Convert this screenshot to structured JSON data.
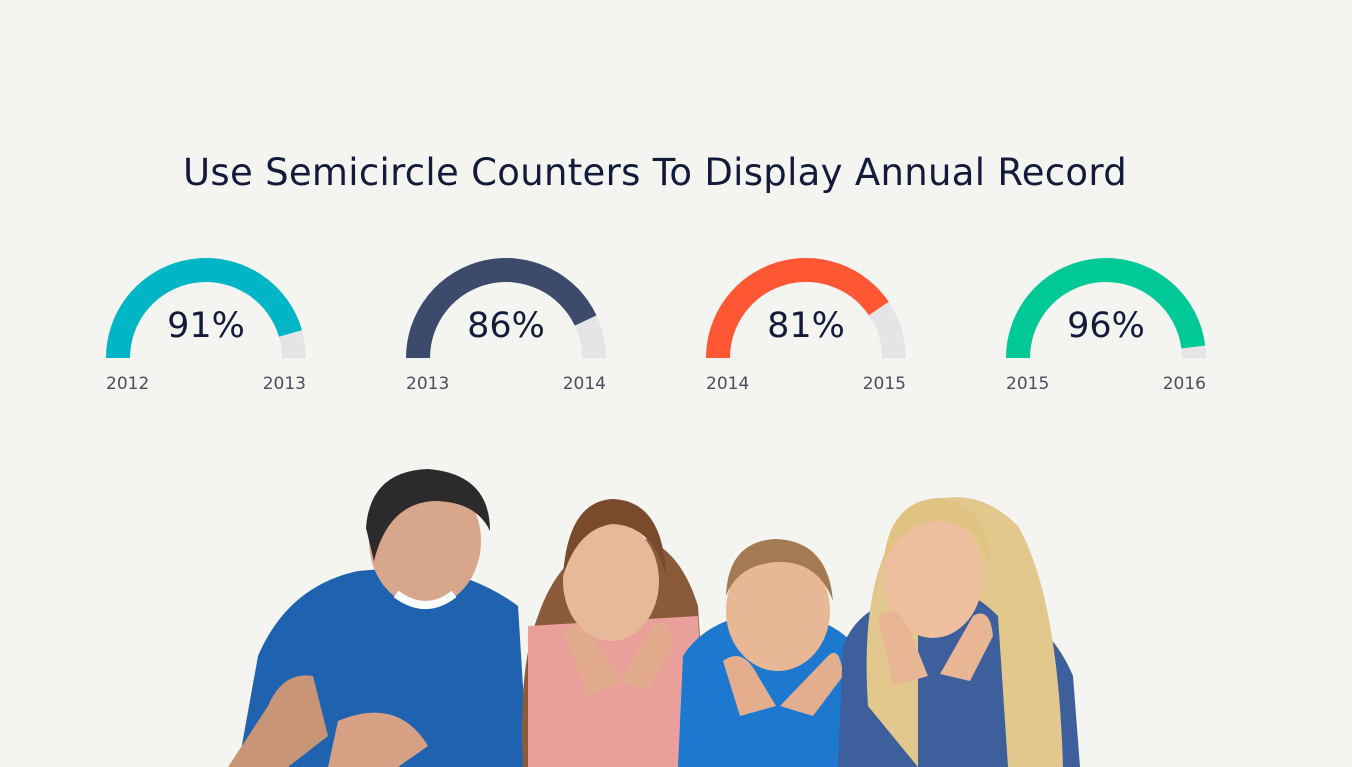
{
  "heading": "Use Semicircle Counters To Display Annual Record",
  "gauges": [
    {
      "percent_label": "91%",
      "value": 0.91,
      "start_year": "2012",
      "end_year": "2013",
      "color": "#00b5c6"
    },
    {
      "percent_label": "86%",
      "value": 0.86,
      "start_year": "2013",
      "end_year": "2014",
      "color": "#3c4a6b"
    },
    {
      "percent_label": "81%",
      "value": 0.81,
      "start_year": "2014",
      "end_year": "2015",
      "color": "#ff5733"
    },
    {
      "percent_label": "96%",
      "value": 0.96,
      "start_year": "2015",
      "end_year": "2016",
      "color": "#00c896"
    }
  ],
  "track_color": "#e5e5e8",
  "photo": {
    "subject": "family-photo"
  }
}
